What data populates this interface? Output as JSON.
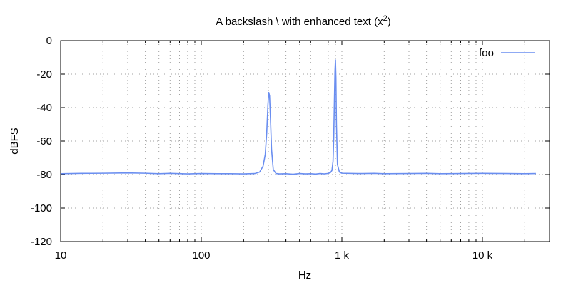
{
  "chart_data": {
    "type": "line",
    "title": "A backslash \\ with enhanced text (x2)",
    "title_parts": {
      "main": "A backslash \\ with enhanced text (x",
      "superscript": "2",
      "tail": ")"
    },
    "xlabel": "Hz",
    "ylabel": "dBFS",
    "xscale": "log",
    "xlim": [
      10,
      30000
    ],
    "ylim": [
      -120,
      0
    ],
    "x_ticks": [
      {
        "value": 10,
        "label": "10"
      },
      {
        "value": 100,
        "label": "100"
      },
      {
        "value": 1000,
        "label": "1 k"
      },
      {
        "value": 10000,
        "label": "10 k"
      }
    ],
    "y_ticks": [
      {
        "value": 0,
        "label": "0"
      },
      {
        "value": -20,
        "label": "-20"
      },
      {
        "value": -40,
        "label": "-40"
      },
      {
        "value": -60,
        "label": "-60"
      },
      {
        "value": -80,
        "label": "-80"
      },
      {
        "value": -100,
        "label": "-100"
      },
      {
        "value": -120,
        "label": "-120"
      }
    ],
    "grid": true,
    "legend_position": "top-right",
    "series": [
      {
        "name": "foo",
        "color": "#6a8ef0",
        "x": [
          10,
          14,
          20,
          30,
          40,
          50,
          60,
          80,
          100,
          130,
          160,
          200,
          240,
          260,
          275,
          285,
          292,
          298,
          302,
          306,
          310,
          316,
          325,
          340,
          360,
          400,
          450,
          500,
          550,
          600,
          650,
          700,
          750,
          800,
          830,
          850,
          865,
          875,
          885,
          893,
          900,
          907,
          915,
          930,
          960,
          1000,
          1300,
          1700,
          2000,
          3000,
          4000,
          5000,
          7000,
          10000,
          15000,
          20000,
          24000
        ],
        "y": [
          -79.5,
          -79.3,
          -79.2,
          -79.0,
          -79.2,
          -79.5,
          -79.3,
          -79.6,
          -79.4,
          -79.5,
          -79.5,
          -79.6,
          -79.4,
          -78.5,
          -75,
          -68,
          -55,
          -38,
          -31,
          -33,
          -45,
          -65,
          -77,
          -79.4,
          -79.6,
          -79.5,
          -79.8,
          -79.4,
          -79.6,
          -79.5,
          -79.7,
          -79.4,
          -79.6,
          -79.3,
          -78.8,
          -77.5,
          -72,
          -58,
          -35,
          -18,
          -11.5,
          -22,
          -50,
          -74,
          -78.5,
          -79.2,
          -79.4,
          -79.3,
          -79.5,
          -79.4,
          -79.3,
          -79.5,
          -79.4,
          -79.3,
          -79.4,
          -79.5,
          -79.4
        ]
      }
    ]
  }
}
